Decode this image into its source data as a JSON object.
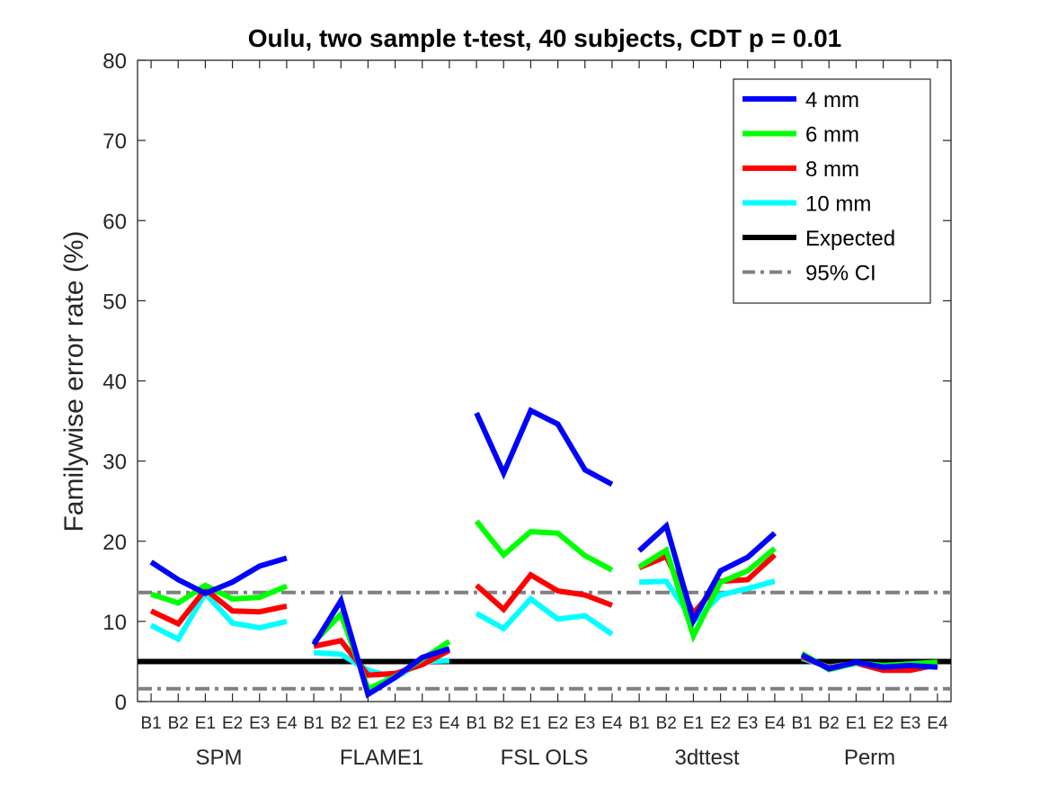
{
  "chart_data": {
    "type": "line",
    "title": "Oulu, two sample t-test, 40 subjects, CDT p = 0.01",
    "ylabel": "Familywise error rate (%)",
    "xlabel": "",
    "ylim": [
      0,
      80
    ],
    "yticks": [
      0,
      10,
      20,
      30,
      40,
      50,
      60,
      70,
      80
    ],
    "groups": [
      "SPM",
      "FLAME1",
      "FSL OLS",
      "3dttest",
      "Perm"
    ],
    "categories": [
      "B1",
      "B2",
      "E1",
      "E2",
      "E3",
      "E4"
    ],
    "legend_position": "top-right",
    "grid": false,
    "series": [
      {
        "name": "4 mm",
        "color": "#0000ff",
        "values": [
          [
            17.4,
            15.2,
            13.5,
            14.9,
            16.9,
            17.9
          ],
          [
            7.1,
            12.6,
            0.9,
            3.0,
            5.5,
            6.6
          ],
          [
            36.0,
            28.5,
            36.3,
            34.6,
            28.9,
            27.1
          ],
          [
            18.8,
            21.9,
            10.1,
            16.3,
            18.0,
            21.0
          ],
          [
            5.8,
            4.1,
            4.9,
            4.3,
            4.5,
            4.3
          ]
        ]
      },
      {
        "name": "6 mm",
        "color": "#00ff00",
        "values": [
          [
            13.4,
            12.3,
            14.5,
            12.8,
            13.0,
            14.4
          ],
          [
            7.4,
            10.9,
            1.6,
            3.1,
            5.3,
            7.5
          ],
          [
            22.5,
            18.3,
            21.2,
            21.0,
            18.2,
            16.4
          ],
          [
            16.8,
            18.9,
            8.2,
            14.9,
            16.3,
            19.1
          ],
          [
            6.0,
            4.0,
            4.8,
            4.5,
            4.7,
            4.9
          ]
        ]
      },
      {
        "name": "8 mm",
        "color": "#ff0000",
        "values": [
          [
            11.3,
            9.7,
            14.0,
            11.3,
            11.2,
            11.9
          ],
          [
            6.9,
            7.6,
            3.3,
            3.5,
            4.6,
            6.4
          ],
          [
            14.5,
            11.5,
            15.8,
            13.8,
            13.3,
            12.0
          ],
          [
            16.7,
            18.1,
            11.0,
            15.0,
            15.2,
            18.3
          ],
          [
            5.6,
            4.2,
            4.8,
            3.9,
            3.9,
            4.6
          ]
        ]
      },
      {
        "name": "10 mm",
        "color": "#00ffff",
        "values": [
          [
            9.5,
            7.8,
            13.5,
            9.8,
            9.2,
            10.0
          ],
          [
            6.1,
            5.9,
            3.9,
            3.0,
            5.0,
            5.1
          ],
          [
            11.0,
            9.1,
            12.8,
            10.3,
            10.7,
            8.4
          ],
          [
            14.9,
            15.0,
            10.0,
            13.3,
            14.1,
            15.0
          ],
          [
            5.4,
            4.3,
            4.8,
            4.3,
            4.3,
            4.5
          ]
        ]
      },
      {
        "name": "Expected",
        "color": "#000000",
        "constant": 5
      },
      {
        "name": "95% CI",
        "color": "#808080",
        "dashed": true,
        "constant": [
          1.6,
          13.6
        ]
      }
    ]
  }
}
